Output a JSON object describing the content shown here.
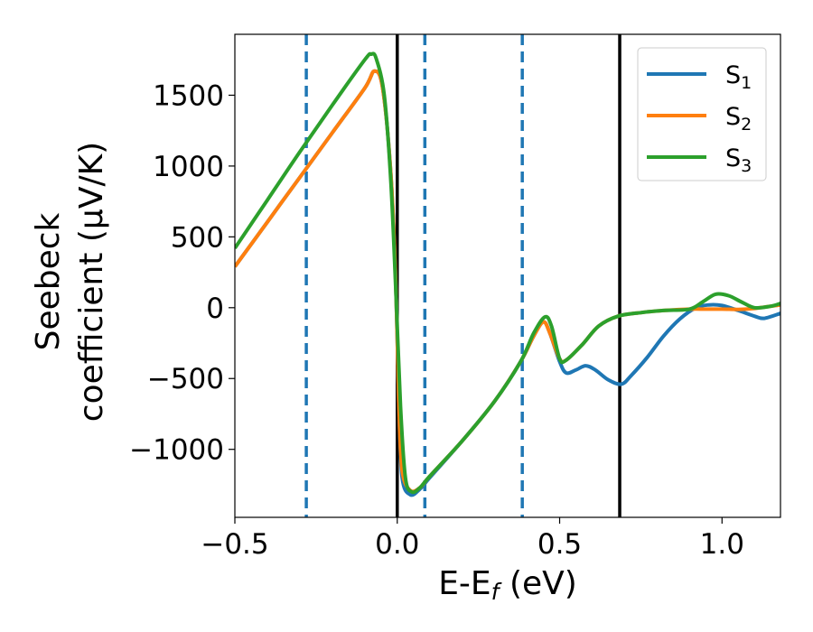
{
  "chart_data": {
    "type": "line",
    "xlabel": "E-E",
    "xlabel_sub": "f",
    "xlabel_unit": "(eV)",
    "ylabel_line1": "Seebeck",
    "ylabel_line2": "coefficient  (μV/K)",
    "xlim": [
      -0.5,
      1.18
    ],
    "ylim": [
      -1480,
      1930
    ],
    "xticks": [
      -0.5,
      0.0,
      0.5,
      1.0
    ],
    "xtick_labels": [
      "−0.5",
      "0.0",
      "0.5",
      "1.0"
    ],
    "yticks": [
      -1000,
      -500,
      0,
      500,
      1000,
      1500
    ],
    "ytick_labels": [
      "−1000",
      "−500",
      "0",
      "500",
      "1000",
      "1500"
    ],
    "legend_position": "top-right",
    "vlines_solid": [
      0.0,
      0.685
    ],
    "vlines_dashed": [
      -0.28,
      0.085,
      0.385
    ],
    "colors": {
      "S1": "#1f77b4",
      "S2": "#ff7f0e",
      "S3": "#2ca02c",
      "solid_vline": "#000000",
      "dashed_vline": "#1f77b4"
    },
    "series": [
      {
        "name": "S",
        "sub": "1",
        "color": "#1f77b4",
        "points": [
          [
            -0.5,
            290
          ],
          [
            -0.4,
            605
          ],
          [
            -0.3,
            920
          ],
          [
            -0.2,
            1235
          ],
          [
            -0.1,
            1550
          ],
          [
            -0.07,
            1670
          ],
          [
            -0.045,
            1550
          ],
          [
            -0.02,
            950
          ],
          [
            -0.005,
            200
          ],
          [
            0.005,
            -700
          ],
          [
            0.015,
            -1200
          ],
          [
            0.04,
            -1320
          ],
          [
            0.07,
            -1280
          ],
          [
            0.1,
            -1200
          ],
          [
            0.2,
            -940
          ],
          [
            0.3,
            -660
          ],
          [
            0.38,
            -380
          ],
          [
            0.42,
            -200
          ],
          [
            0.45,
            -100
          ],
          [
            0.47,
            -180
          ],
          [
            0.5,
            -380
          ],
          [
            0.52,
            -460
          ],
          [
            0.55,
            -440
          ],
          [
            0.58,
            -410
          ],
          [
            0.61,
            -440
          ],
          [
            0.65,
            -510
          ],
          [
            0.69,
            -540
          ],
          [
            0.72,
            -480
          ],
          [
            0.77,
            -350
          ],
          [
            0.82,
            -200
          ],
          [
            0.87,
            -80
          ],
          [
            0.92,
            0
          ],
          [
            0.96,
            20
          ],
          [
            1.0,
            15
          ],
          [
            1.05,
            -20
          ],
          [
            1.1,
            -60
          ],
          [
            1.13,
            -75
          ],
          [
            1.18,
            -40
          ]
        ]
      },
      {
        "name": "S",
        "sub": "2",
        "color": "#ff7f0e",
        "points": [
          [
            -0.5,
            290
          ],
          [
            -0.4,
            605
          ],
          [
            -0.3,
            920
          ],
          [
            -0.2,
            1235
          ],
          [
            -0.1,
            1550
          ],
          [
            -0.07,
            1670
          ],
          [
            -0.045,
            1550
          ],
          [
            -0.02,
            950
          ],
          [
            -0.005,
            200
          ],
          [
            0.005,
            -700
          ],
          [
            0.015,
            -1150
          ],
          [
            0.04,
            -1290
          ],
          [
            0.07,
            -1270
          ],
          [
            0.1,
            -1190
          ],
          [
            0.2,
            -940
          ],
          [
            0.3,
            -660
          ],
          [
            0.38,
            -380
          ],
          [
            0.42,
            -200
          ],
          [
            0.45,
            -100
          ],
          [
            0.47,
            -180
          ],
          [
            0.5,
            -360
          ],
          [
            0.52,
            -370
          ],
          [
            0.57,
            -260
          ],
          [
            0.62,
            -130
          ],
          [
            0.68,
            -60
          ],
          [
            0.75,
            -35
          ],
          [
            0.82,
            -20
          ],
          [
            0.9,
            -10
          ],
          [
            0.95,
            -10
          ],
          [
            1.0,
            -10
          ],
          [
            1.05,
            -12
          ],
          [
            1.1,
            -5
          ],
          [
            1.18,
            20
          ]
        ]
      },
      {
        "name": "S",
        "sub": "3",
        "color": "#2ca02c",
        "points": [
          [
            -0.5,
            420
          ],
          [
            -0.4,
            760
          ],
          [
            -0.3,
            1100
          ],
          [
            -0.2,
            1430
          ],
          [
            -0.1,
            1750
          ],
          [
            -0.08,
            1790
          ],
          [
            -0.065,
            1760
          ],
          [
            -0.04,
            1500
          ],
          [
            -0.02,
            900
          ],
          [
            -0.005,
            150
          ],
          [
            0.01,
            -700
          ],
          [
            0.025,
            -1200
          ],
          [
            0.045,
            -1300
          ],
          [
            0.07,
            -1270
          ],
          [
            0.1,
            -1190
          ],
          [
            0.2,
            -940
          ],
          [
            0.3,
            -660
          ],
          [
            0.38,
            -380
          ],
          [
            0.42,
            -180
          ],
          [
            0.455,
            -65
          ],
          [
            0.475,
            -130
          ],
          [
            0.5,
            -360
          ],
          [
            0.52,
            -370
          ],
          [
            0.57,
            -260
          ],
          [
            0.62,
            -130
          ],
          [
            0.68,
            -60
          ],
          [
            0.75,
            -35
          ],
          [
            0.82,
            -20
          ],
          [
            0.9,
            -10
          ],
          [
            0.94,
            40
          ],
          [
            0.98,
            95
          ],
          [
            1.02,
            85
          ],
          [
            1.06,
            40
          ],
          [
            1.1,
            0
          ],
          [
            1.15,
            10
          ],
          [
            1.18,
            30
          ]
        ]
      }
    ]
  }
}
